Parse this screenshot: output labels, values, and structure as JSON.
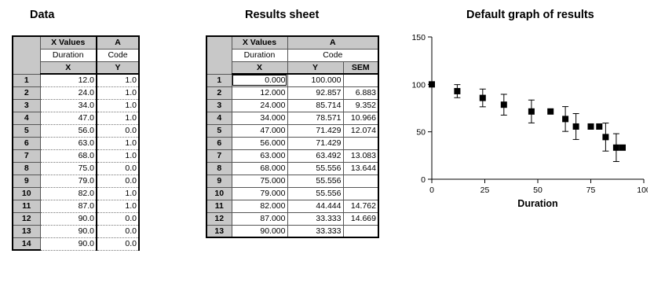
{
  "titles": {
    "data": "Data",
    "results": "Results sheet",
    "graph": "Default graph of results"
  },
  "data_sheet": {
    "col_headers": [
      "X Values",
      "A"
    ],
    "col_titles": [
      "Duration",
      "Code"
    ],
    "col_subheaders": [
      "X",
      "Y"
    ],
    "rows": [
      {
        "n": "1",
        "x": "12.0",
        "y": "1.0"
      },
      {
        "n": "2",
        "x": "24.0",
        "y": "1.0"
      },
      {
        "n": "3",
        "x": "34.0",
        "y": "1.0"
      },
      {
        "n": "4",
        "x": "47.0",
        "y": "1.0"
      },
      {
        "n": "5",
        "x": "56.0",
        "y": "0.0"
      },
      {
        "n": "6",
        "x": "63.0",
        "y": "1.0"
      },
      {
        "n": "7",
        "x": "68.0",
        "y": "1.0"
      },
      {
        "n": "8",
        "x": "75.0",
        "y": "0.0"
      },
      {
        "n": "9",
        "x": "79.0",
        "y": "0.0"
      },
      {
        "n": "10",
        "x": "82.0",
        "y": "1.0"
      },
      {
        "n": "11",
        "x": "87.0",
        "y": "1.0"
      },
      {
        "n": "12",
        "x": "90.0",
        "y": "0.0"
      },
      {
        "n": "13",
        "x": "90.0",
        "y": "0.0"
      },
      {
        "n": "14",
        "x": "90.0",
        "y": "0.0"
      }
    ]
  },
  "results_sheet": {
    "col_headers": [
      "X Values",
      "A"
    ],
    "col_titles": [
      "Duration",
      "Code"
    ],
    "col_subheaders": [
      "X",
      "Y",
      "SEM"
    ],
    "rows": [
      {
        "n": "1",
        "x": "0.000",
        "y": "100.000",
        "sem": ""
      },
      {
        "n": "2",
        "x": "12.000",
        "y": "92.857",
        "sem": "6.883"
      },
      {
        "n": "3",
        "x": "24.000",
        "y": "85.714",
        "sem": "9.352"
      },
      {
        "n": "4",
        "x": "34.000",
        "y": "78.571",
        "sem": "10.966"
      },
      {
        "n": "5",
        "x": "47.000",
        "y": "71.429",
        "sem": "12.074"
      },
      {
        "n": "6",
        "x": "56.000",
        "y": "71.429",
        "sem": ""
      },
      {
        "n": "7",
        "x": "63.000",
        "y": "63.492",
        "sem": "13.083"
      },
      {
        "n": "8",
        "x": "68.000",
        "y": "55.556",
        "sem": "13.644"
      },
      {
        "n": "9",
        "x": "75.000",
        "y": "55.556",
        "sem": ""
      },
      {
        "n": "10",
        "x": "79.000",
        "y": "55.556",
        "sem": ""
      },
      {
        "n": "11",
        "x": "82.000",
        "y": "44.444",
        "sem": "14.762"
      },
      {
        "n": "12",
        "x": "87.000",
        "y": "33.333",
        "sem": "14.669"
      },
      {
        "n": "13",
        "x": "90.000",
        "y": "33.333",
        "sem": ""
      }
    ]
  },
  "chart_data": {
    "type": "scatter",
    "title": "Default graph of results",
    "xlabel": "Duration",
    "ylabel": "",
    "xlim": [
      0,
      100
    ],
    "ylim": [
      0,
      150
    ],
    "xticks": [
      "0",
      "25",
      "50",
      "75",
      "100"
    ],
    "yticks": [
      "0",
      "50",
      "100",
      "150"
    ],
    "grid": false,
    "points": [
      {
        "x": 0,
        "y": 100.0,
        "sem": 0
      },
      {
        "x": 12,
        "y": 92.857,
        "sem": 6.883
      },
      {
        "x": 24,
        "y": 85.714,
        "sem": 9.352
      },
      {
        "x": 34,
        "y": 78.571,
        "sem": 10.966
      },
      {
        "x": 47,
        "y": 71.429,
        "sem": 12.074
      },
      {
        "x": 56,
        "y": 71.429,
        "sem": 0
      },
      {
        "x": 63,
        "y": 63.492,
        "sem": 13.083
      },
      {
        "x": 68,
        "y": 55.556,
        "sem": 13.644
      },
      {
        "x": 75,
        "y": 55.556,
        "sem": 0
      },
      {
        "x": 79,
        "y": 55.556,
        "sem": 0
      },
      {
        "x": 82,
        "y": 44.444,
        "sem": 14.762
      },
      {
        "x": 87,
        "y": 33.333,
        "sem": 14.669
      },
      {
        "x": 90,
        "y": 33.333,
        "sem": 0
      }
    ],
    "marker_color": "#000000"
  }
}
